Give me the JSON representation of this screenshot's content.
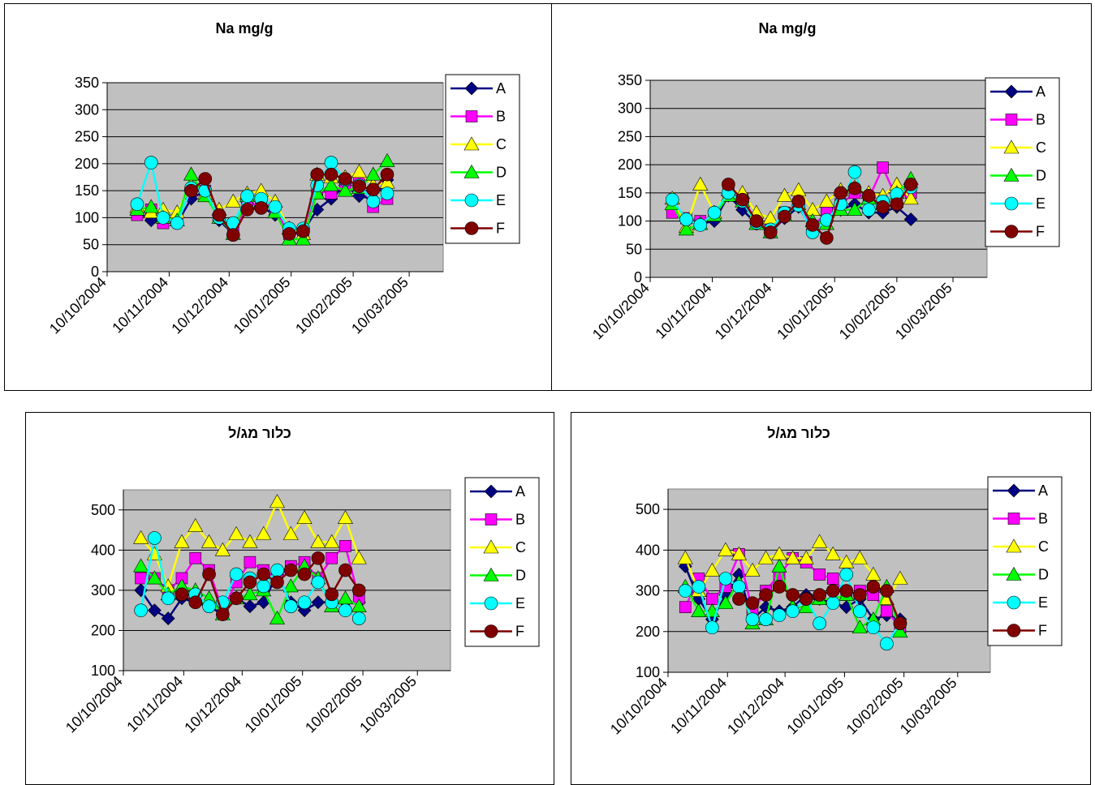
{
  "charts": [
    {
      "title": "Na mg/g"
    },
    {
      "title": "Na mg/g"
    },
    {
      "title": "כלור מג/ל"
    },
    {
      "title": "כלור מג/ל"
    }
  ],
  "colors": {
    "A": "#000080",
    "B": "#FF00FF",
    "C": "#FFFF00",
    "D": "#00FF00",
    "E": "#00FFFF",
    "F": "#800000",
    "plot_bg": "#C0C0C0"
  },
  "chart_data": [
    {
      "type": "line",
      "title": "Na mg/g",
      "xlabel": "",
      "ylabel": "",
      "xlim": [
        "2004-10-10",
        "2005-03-27"
      ],
      "ylim": [
        0,
        350
      ],
      "x_ticks": [
        "10/10/2004",
        "10/11/2004",
        "10/12/2004",
        "10/01/2005",
        "10/02/2005",
        "10/03/2005"
      ],
      "y_ticks": [
        0,
        50,
        100,
        150,
        200,
        250,
        300,
        350
      ],
      "grid": true,
      "legend": "right",
      "x": [
        "2004-10-25",
        "2004-11-01",
        "2004-11-07",
        "2004-11-14",
        "2004-11-21",
        "2004-11-28",
        "2004-12-05",
        "2004-12-12",
        "2004-12-19",
        "2004-12-26",
        "2005-01-02",
        "2005-01-09",
        "2005-01-16",
        "2005-01-23",
        "2005-01-30",
        "2005-02-06",
        "2005-02-13",
        "2005-02-20",
        "2005-02-27"
      ],
      "series": [
        {
          "name": "A",
          "marker": "diamond",
          "values": [
            110,
            95,
            100,
            90,
            135,
            150,
            95,
            70,
            130,
            120,
            105,
            75,
            75,
            115,
            135,
            160,
            140,
            135,
            170
          ]
        },
        {
          "name": "B",
          "marker": "square",
          "values": [
            105,
            115,
            90,
            95,
            150,
            150,
            100,
            75,
            120,
            130,
            115,
            70,
            70,
            150,
            145,
            160,
            170,
            120,
            135
          ]
        },
        {
          "name": "C",
          "marker": "triangle",
          "values": [
            120,
            110,
            115,
            110,
            160,
            145,
            115,
            130,
            145,
            150,
            130,
            80,
            70,
            180,
            175,
            175,
            185,
            160,
            165
          ]
        },
        {
          "name": "D",
          "marker": "triangle",
          "values": [
            115,
            120,
            100,
            95,
            180,
            140,
            100,
            70,
            140,
            130,
            110,
            60,
            60,
            145,
            160,
            150,
            155,
            180,
            205
          ]
        },
        {
          "name": "E",
          "marker": "circle",
          "values": [
            125,
            202,
            100,
            90,
            155,
            150,
            100,
            90,
            140,
            135,
            120,
            80,
            80,
            160,
            202,
            170,
            160,
            130,
            145
          ]
        },
        {
          "name": "F",
          "marker": "circle",
          "values": [
            null,
            null,
            null,
            null,
            150,
            172,
            105,
            68,
            115,
            118,
            null,
            70,
            75,
            180,
            180,
            172,
            158,
            152,
            180
          ]
        }
      ]
    },
    {
      "type": "line",
      "title": "Na mg/g",
      "xlabel": "",
      "ylabel": "",
      "xlim": [
        "2004-10-10",
        "2005-03-27"
      ],
      "ylim": [
        0,
        350
      ],
      "x_ticks": [
        "10/10/2004",
        "10/11/2004",
        "10/12/2004",
        "10/01/2005",
        "10/02/2005",
        "10/03/2005"
      ],
      "y_ticks": [
        0,
        50,
        100,
        150,
        200,
        250,
        300,
        350
      ],
      "grid": true,
      "legend": "right",
      "x": [
        "2004-10-21",
        "2004-10-28",
        "2004-11-04",
        "2004-11-11",
        "2004-11-18",
        "2004-11-25",
        "2004-12-02",
        "2004-12-09",
        "2004-12-16",
        "2004-12-23",
        "2004-12-30",
        "2005-01-06",
        "2005-01-13",
        "2005-01-20",
        "2005-01-27",
        "2005-02-03",
        "2005-02-10",
        "2005-02-17"
      ],
      "series": [
        {
          "name": "A",
          "marker": "diamond",
          "values": [
            120,
            100,
            95,
            100,
            145,
            120,
            95,
            80,
            105,
            125,
            85,
            110,
            120,
            130,
            115,
            115,
            125,
            103
          ]
        },
        {
          "name": "B",
          "marker": "square",
          "values": [
            115,
            105,
            100,
            110,
            150,
            140,
            100,
            85,
            115,
            130,
            90,
            115,
            130,
            150,
            140,
            195,
            140,
            150
          ]
        },
        {
          "name": "C",
          "marker": "triangle",
          "values": [
            140,
            90,
            165,
            115,
            155,
            150,
            115,
            105,
            145,
            155,
            120,
            135,
            155,
            160,
            150,
            145,
            165,
            140
          ]
        },
        {
          "name": "D",
          "marker": "triangle",
          "values": [
            130,
            85,
            95,
            110,
            145,
            135,
            95,
            80,
            110,
            130,
            100,
            95,
            120,
            120,
            140,
            130,
            150,
            175
          ]
        },
        {
          "name": "E",
          "marker": "circle",
          "values": [
            138,
            103,
            93,
            115,
            150,
            135,
            97,
            85,
            115,
            128,
            80,
            102,
            130,
            187,
            120,
            135,
            148,
            160
          ]
        },
        {
          "name": "F",
          "marker": "circle",
          "values": [
            null,
            null,
            null,
            null,
            165,
            138,
            100,
            80,
            108,
            135,
            93,
            70,
            150,
            158,
            145,
            125,
            130,
            165
          ]
        }
      ]
    },
    {
      "type": "line",
      "title": "כלור מג/ל",
      "xlabel": "",
      "ylabel": "",
      "xlim": [
        "2004-10-10",
        "2005-03-27"
      ],
      "ylim": [
        100,
        550
      ],
      "x_ticks": [
        "10/10/2004",
        "10/11/2004",
        "10/12/2004",
        "10/01/2005",
        "10/02/2005",
        "10/03/2005"
      ],
      "y_ticks": [
        100,
        200,
        300,
        400,
        500
      ],
      "grid": true,
      "legend": "right",
      "x": [
        "2004-10-19",
        "2004-10-26",
        "2004-11-02",
        "2004-11-09",
        "2004-11-16",
        "2004-11-23",
        "2004-11-30",
        "2004-12-07",
        "2004-12-14",
        "2004-12-21",
        "2004-12-28",
        "2005-01-04",
        "2005-01-11",
        "2005-01-18",
        "2005-01-25",
        "2005-02-01",
        "2005-02-08"
      ],
      "series": [
        {
          "name": "A",
          "marker": "diamond",
          "values": [
            300,
            250,
            230,
            280,
            270,
            260,
            240,
            280,
            260,
            270,
            340,
            270,
            250,
            270,
            270,
            270,
            270
          ]
        },
        {
          "name": "B",
          "marker": "square",
          "values": [
            330,
            330,
            300,
            330,
            380,
            350,
            250,
            320,
            370,
            350,
            330,
            360,
            370,
            330,
            380,
            410,
            280
          ]
        },
        {
          "name": "C",
          "marker": "triangle",
          "values": [
            430,
            390,
            310,
            420,
            460,
            420,
            400,
            440,
            420,
            440,
            520,
            440,
            480,
            420,
            420,
            480,
            380
          ]
        },
        {
          "name": "D",
          "marker": "triangle",
          "values": [
            360,
            330,
            290,
            310,
            300,
            280,
            240,
            280,
            290,
            300,
            230,
            310,
            360,
            330,
            260,
            280,
            260
          ]
        },
        {
          "name": "E",
          "marker": "circle",
          "values": [
            250,
            430,
            280,
            290,
            290,
            260,
            270,
            340,
            330,
            310,
            350,
            260,
            270,
            320,
            270,
            250,
            230
          ]
        },
        {
          "name": "F",
          "marker": "circle",
          "values": [
            null,
            null,
            null,
            290,
            270,
            340,
            240,
            280,
            320,
            340,
            320,
            350,
            340,
            380,
            290,
            350,
            300
          ]
        }
      ]
    },
    {
      "type": "line",
      "title": "כלור מג/ל",
      "xlabel": "",
      "ylabel": "",
      "xlim": [
        "2004-10-10",
        "2005-03-27"
      ],
      "ylim": [
        100,
        550
      ],
      "x_ticks": [
        "10/10/2004",
        "10/11/2004",
        "10/12/2004",
        "10/01/2005",
        "10/02/2005",
        "10/03/2005"
      ],
      "y_ticks": [
        100,
        200,
        300,
        400,
        500
      ],
      "grid": true,
      "legend": "right",
      "x": [
        "2004-10-19",
        "2004-10-26",
        "2004-11-02",
        "2004-11-09",
        "2004-11-16",
        "2004-11-23",
        "2004-11-30",
        "2004-12-07",
        "2004-12-14",
        "2004-12-21",
        "2004-12-28",
        "2005-01-04",
        "2005-01-11",
        "2005-01-18",
        "2005-01-25",
        "2005-02-01",
        "2005-02-08"
      ],
      "series": [
        {
          "name": "A",
          "marker": "diamond",
          "values": [
            360,
            280,
            230,
            290,
            340,
            230,
            260,
            250,
            260,
            290,
            280,
            270,
            260,
            280,
            230,
            240,
            230
          ]
        },
        {
          "name": "B",
          "marker": "square",
          "values": [
            260,
            330,
            280,
            310,
            390,
            250,
            300,
            340,
            380,
            370,
            340,
            330,
            290,
            300,
            290,
            250,
            210
          ]
        },
        {
          "name": "C",
          "marker": "triangle",
          "values": [
            380,
            300,
            350,
            400,
            390,
            350,
            380,
            390,
            380,
            380,
            420,
            390,
            370,
            380,
            340,
            280,
            330
          ]
        },
        {
          "name": "D",
          "marker": "triangle",
          "values": [
            310,
            250,
            250,
            270,
            320,
            220,
            230,
            360,
            260,
            260,
            280,
            280,
            290,
            210,
            230,
            310,
            200
          ]
        },
        {
          "name": "E",
          "marker": "circle",
          "values": [
            300,
            310,
            210,
            330,
            310,
            230,
            230,
            240,
            250,
            280,
            220,
            270,
            340,
            250,
            210,
            170,
            220
          ]
        },
        {
          "name": "F",
          "marker": "circle",
          "values": [
            null,
            null,
            null,
            null,
            280,
            270,
            290,
            310,
            290,
            280,
            290,
            300,
            300,
            290,
            310,
            300,
            220
          ]
        }
      ]
    }
  ]
}
